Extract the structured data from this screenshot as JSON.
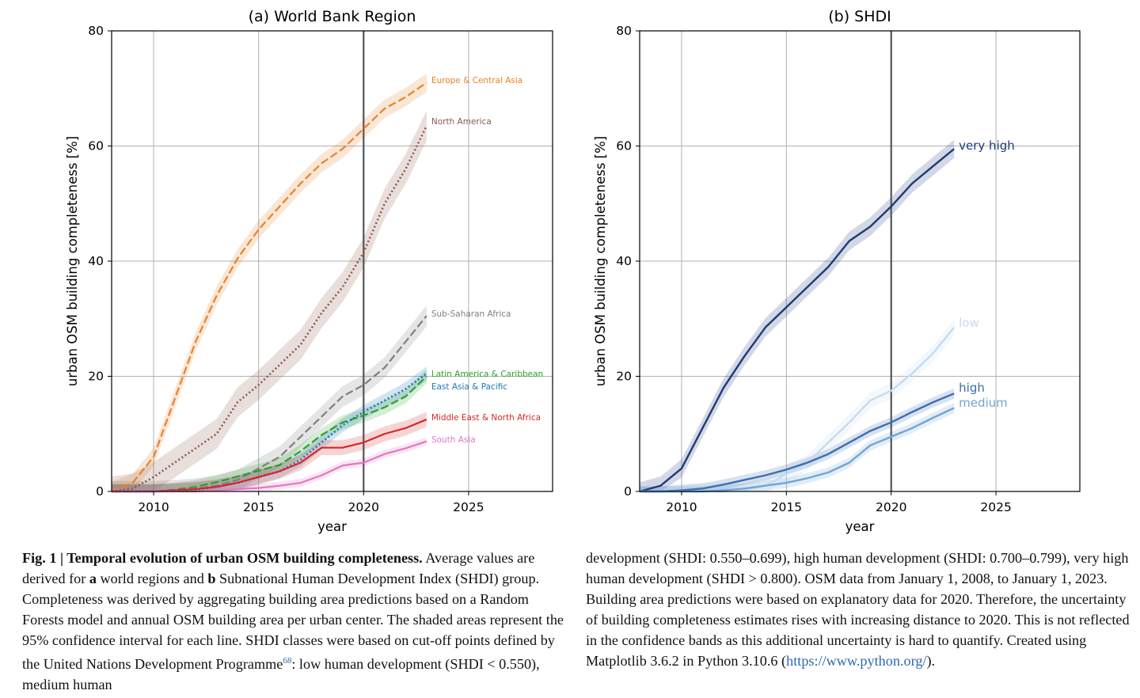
{
  "chart_data": [
    {
      "type": "line",
      "title": "(a) World Bank Region",
      "xlabel": "year",
      "ylabel": "urban OSM building completeness [%]",
      "xlim": [
        2008,
        2029
      ],
      "ylim": [
        0,
        80
      ],
      "xticks": [
        2010,
        2015,
        2020,
        2025
      ],
      "yticks": [
        0,
        20,
        40,
        60,
        80
      ],
      "grid": true,
      "vline": 2020,
      "legend": "inline labels at line ends",
      "series": [
        {
          "name": "Europe & Central Asia",
          "color": "#e8822b",
          "dash": "dashed",
          "ci": 1.6,
          "x": [
            2008,
            2009,
            2010,
            2011,
            2012,
            2013,
            2014,
            2015,
            2016,
            2017,
            2018,
            2019,
            2020,
            2021,
            2022,
            2023
          ],
          "values": [
            0,
            1.5,
            6,
            16,
            26,
            34,
            40.5,
            45.5,
            49.5,
            53.5,
            57,
            59.5,
            63,
            66.5,
            68.5,
            71
          ]
        },
        {
          "name": "North America",
          "color": "#8c5a4a",
          "dash": "dotted",
          "ci": 2.6,
          "x": [
            2008,
            2009,
            2010,
            2011,
            2012,
            2013,
            2014,
            2015,
            2016,
            2017,
            2018,
            2019,
            2020,
            2021,
            2022,
            2023
          ],
          "values": [
            0,
            0.5,
            2.5,
            5,
            7.5,
            10,
            15.5,
            18.5,
            22,
            25.5,
            31,
            35.5,
            41.5,
            50,
            56,
            63.5
          ]
        },
        {
          "name": "Sub-Saharan Africa",
          "color": "#7f7f7f",
          "dash": "dashed",
          "ci": 1.8,
          "x": [
            2008,
            2009,
            2010,
            2011,
            2012,
            2013,
            2014,
            2015,
            2016,
            2017,
            2018,
            2019,
            2020,
            2021,
            2022,
            2023
          ],
          "values": [
            0,
            0,
            0,
            0.2,
            0.5,
            1,
            2,
            4,
            6,
            9.5,
            13,
            16.5,
            18.5,
            21.5,
            26,
            30.5
          ]
        },
        {
          "name": "Latin America & Caribbean",
          "color": "#2ca02c",
          "dash": "dashed",
          "ci": 1.2,
          "x": [
            2008,
            2009,
            2010,
            2011,
            2012,
            2013,
            2014,
            2015,
            2016,
            2017,
            2018,
            2019,
            2020,
            2021,
            2022,
            2023
          ],
          "values": [
            0,
            0,
            0,
            0.3,
            0.8,
            1.6,
            2.6,
            3.6,
            4.6,
            7,
            9.8,
            12,
            13.2,
            14.6,
            16.5,
            20
          ]
        },
        {
          "name": "East Asia & Pacific",
          "color": "#1f77b4",
          "dash": "dotted",
          "ci": 1.2,
          "x": [
            2008,
            2009,
            2010,
            2011,
            2012,
            2013,
            2014,
            2015,
            2016,
            2017,
            2018,
            2019,
            2020,
            2021,
            2022,
            2023
          ],
          "values": [
            0,
            0,
            0,
            0.1,
            0.3,
            0.8,
            1.5,
            2.5,
            3.5,
            5.5,
            8.5,
            11.5,
            13.8,
            15.8,
            17.8,
            20.5
          ]
        },
        {
          "name": "Middle East & North Africa",
          "color": "#d62728",
          "dash": "solid",
          "ci": 1.3,
          "x": [
            2008,
            2009,
            2010,
            2011,
            2012,
            2013,
            2014,
            2015,
            2016,
            2017,
            2018,
            2019,
            2020,
            2021,
            2022,
            2023
          ],
          "values": [
            0,
            0,
            0,
            0.2,
            0.4,
            0.8,
            1.5,
            2.5,
            3.5,
            5,
            7.6,
            7.6,
            8.5,
            10,
            11,
            12.5
          ]
        },
        {
          "name": "South Asia",
          "color": "#e377c2",
          "dash": "solid",
          "ci": 0.7,
          "x": [
            2008,
            2009,
            2010,
            2011,
            2012,
            2013,
            2014,
            2015,
            2016,
            2017,
            2018,
            2019,
            2020,
            2021,
            2022,
            2023
          ],
          "values": [
            0,
            0,
            0,
            0,
            0,
            0.2,
            0.4,
            0.6,
            1,
            1.5,
            2.8,
            4.5,
            5,
            6.5,
            7.5,
            8.7
          ]
        }
      ]
    },
    {
      "type": "line",
      "title": "(b) SHDI",
      "xlabel": "year",
      "ylabel": "urban OSM building completeness [%]",
      "xlim": [
        2008,
        2029
      ],
      "ylim": [
        0,
        80
      ],
      "xticks": [
        2010,
        2015,
        2020,
        2025
      ],
      "yticks": [
        0,
        20,
        40,
        60,
        80
      ],
      "grid": true,
      "vline": 2020,
      "legend": "inline labels at line ends",
      "series": [
        {
          "name": "very high",
          "color": "#1f3a78",
          "dash": "solid",
          "ci": 1.6,
          "x": [
            2008,
            2009,
            2010,
            2011,
            2012,
            2013,
            2014,
            2015,
            2016,
            2017,
            2018,
            2019,
            2020,
            2021,
            2022,
            2023
          ],
          "values": [
            0,
            1,
            4,
            11,
            18,
            23.5,
            28.5,
            32,
            35.5,
            39,
            43.5,
            46,
            49.5,
            53.5,
            56.5,
            59.5
          ]
        },
        {
          "name": "low",
          "color": "#c6dbef",
          "dash": "solid",
          "ci": 1.4,
          "x": [
            2008,
            2009,
            2010,
            2011,
            2012,
            2013,
            2014,
            2015,
            2016,
            2017,
            2018,
            2019,
            2020,
            2021,
            2022,
            2023
          ],
          "values": [
            0,
            0,
            0,
            0,
            0,
            0.2,
            1,
            3,
            5,
            8.5,
            12,
            15.8,
            17.5,
            20.5,
            24,
            28.5
          ]
        },
        {
          "name": "high",
          "color": "#3b6fb0",
          "dash": "solid",
          "ci": 0.9,
          "x": [
            2008,
            2009,
            2010,
            2011,
            2012,
            2013,
            2014,
            2015,
            2016,
            2017,
            2018,
            2019,
            2020,
            2021,
            2022,
            2023
          ],
          "values": [
            0,
            0,
            0.2,
            0.5,
            1.2,
            2,
            2.8,
            3.8,
            5,
            6.5,
            8.5,
            10.5,
            12,
            13.8,
            15.5,
            17
          ]
        },
        {
          "name": "medium",
          "color": "#6fa6d6",
          "dash": "solid",
          "ci": 0.9,
          "x": [
            2008,
            2009,
            2010,
            2011,
            2012,
            2013,
            2014,
            2015,
            2016,
            2017,
            2018,
            2019,
            2020,
            2021,
            2022,
            2023
          ],
          "values": [
            0,
            0,
            0,
            0,
            0.2,
            0.5,
            1,
            1.5,
            2.3,
            3.3,
            5,
            8,
            9.5,
            11,
            12.8,
            14.5
          ]
        }
      ]
    }
  ],
  "caption": {
    "fig_label": "Fig. 1 | Temporal evolution of urban OSM building completeness.",
    "left_part1": " Average values are derived for ",
    "a_label": "a",
    "left_part2": " world regions and ",
    "b_label": "b",
    "left_part3": " Subnational Human Development Index (SHDI) group. Completeness was derived by aggregating building area predictions based on a Random Forests model and annual OSM building area per urban center. The shaded areas represent the 95% confidence interval for each line. SHDI classes were based on cut-off points defined by the United Nations Development Programme",
    "ref": "68",
    "left_part4": ": low human development (SHDI < 0.550), medium human",
    "right_part1": "development (SHDI: 0.550–0.699), high human development (SHDI: 0.700–0.799), very high human development (SHDI > 0.800). OSM data from January 1, 2008, to January 1, 2023. Building area predictions were based on explanatory data for 2020. Therefore, the uncertainty of building completeness estimates rises with increasing distance to 2020. This is not reflected in the confidence bands as this additional uncertainty is hard to quantify. Created using Matplotlib 3.6.2 in Python 3.10.6 (",
    "link": "https://www.python.org/",
    "right_part2": ")."
  }
}
